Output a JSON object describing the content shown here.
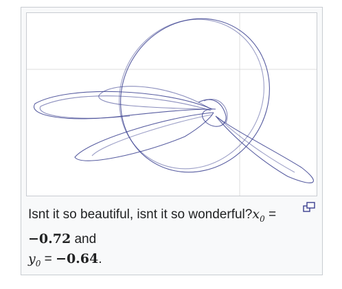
{
  "thumbnail": {
    "caption_text": "Isnt it so beautiful, isnt it so wonderful?",
    "x0_symbol": "x",
    "x0_subscript": "0",
    "x0_value": "−0.72",
    "joiner": "and",
    "y0_symbol": "y",
    "y0_subscript": "0",
    "y0_value": "−0.64",
    "equals": "=",
    "end": ".",
    "enlarge_icon": "magnify-clip-icon"
  },
  "plot_colors": {
    "curve": "#3a3f8f",
    "grid": "#d7d7d7"
  }
}
